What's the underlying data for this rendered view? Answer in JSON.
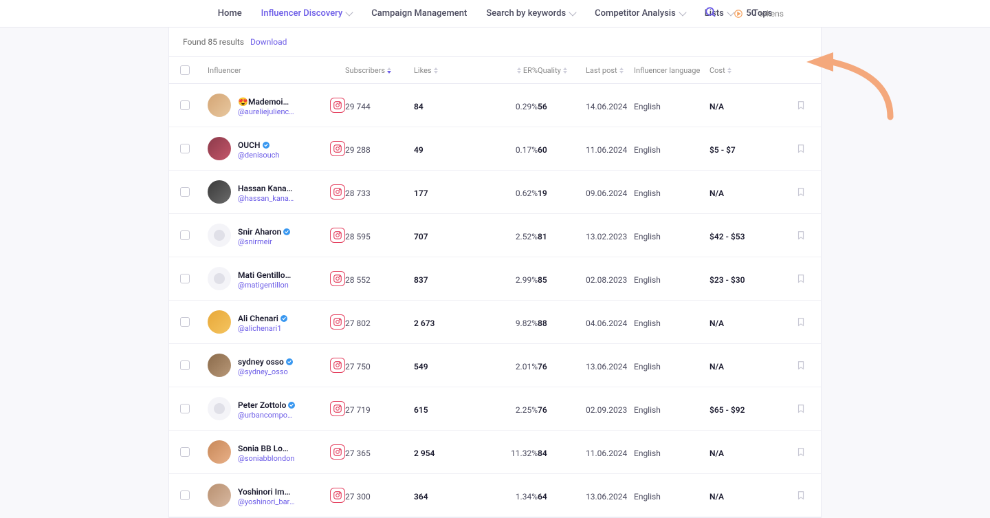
{
  "nav": {
    "items": [
      {
        "label": "Home",
        "active": false,
        "dropdown": false
      },
      {
        "label": "Influencer Discovery",
        "active": true,
        "dropdown": true
      },
      {
        "label": "Campaign Management",
        "active": false,
        "dropdown": false
      },
      {
        "label": "Search by keywords",
        "active": false,
        "dropdown": true
      },
      {
        "label": "Competitor Analysis",
        "active": false,
        "dropdown": true
      },
      {
        "label": "Lists",
        "active": false,
        "dropdown": true
      },
      {
        "label": "Tops",
        "active": false,
        "dropdown": false
      }
    ],
    "tokens_count": "50",
    "tokens_label": "tokens"
  },
  "results": {
    "text": "Found 85 results",
    "download_label": "Download"
  },
  "columns": {
    "influencer": "Influencer",
    "subscribers": "Subscribers",
    "likes": "Likes",
    "er": "ER%",
    "quality": "Quality",
    "lastpost": "Last post",
    "language": "Influencer language",
    "cost": "Cost"
  },
  "rows": [
    {
      "name": "😍Mademoise...",
      "handle": "@aureliejuliencollet",
      "verified": false,
      "avatar_bg": "linear-gradient(135deg,#d4a574,#e8c8a0)",
      "blank": false,
      "subscribers": "29 744",
      "likes": "84",
      "er": "0.29%",
      "quality": "56",
      "lastpost": "14.06.2024",
      "language": "English",
      "cost": "N/A"
    },
    {
      "name": "OUCH",
      "handle": "@denisouch",
      "verified": true,
      "avatar_bg": "linear-gradient(135deg,#8b3a4a,#c4566a)",
      "blank": false,
      "subscribers": "29 288",
      "likes": "49",
      "er": "0.17%",
      "quality": "60",
      "lastpost": "11.06.2024",
      "language": "English",
      "cost": "$5 - $7"
    },
    {
      "name": "Hassan Kanaa...",
      "handle": "@hassan_kanaan_a",
      "verified": false,
      "avatar_bg": "linear-gradient(135deg,#3a3a3a,#6a6a6a)",
      "blank": false,
      "subscribers": "28 733",
      "likes": "177",
      "er": "0.62%",
      "quality": "19",
      "lastpost": "09.06.2024",
      "language": "English",
      "cost": "N/A"
    },
    {
      "name": "Snir Aharon",
      "handle": "@snirmeir",
      "verified": true,
      "avatar_bg": "",
      "blank": true,
      "subscribers": "28 595",
      "likes": "707",
      "er": "2.52%",
      "quality": "81",
      "lastpost": "13.02.2023",
      "language": "English",
      "cost": "$42 - $53"
    },
    {
      "name": "Mati Gentillon...",
      "handle": "@matigentillon",
      "verified": false,
      "avatar_bg": "",
      "blank": true,
      "subscribers": "28 552",
      "likes": "837",
      "er": "2.99%",
      "quality": "85",
      "lastpost": "02.08.2023",
      "language": "English",
      "cost": "$23 - $30"
    },
    {
      "name": "Ali Chenari",
      "handle": "@alichenari1",
      "verified": true,
      "avatar_bg": "linear-gradient(135deg,#e8a838,#f4c460)",
      "blank": false,
      "subscribers": "27 802",
      "likes": "2 673",
      "er": "9.82%",
      "quality": "88",
      "lastpost": "04.06.2024",
      "language": "English",
      "cost": "N/A"
    },
    {
      "name": "sydney osso",
      "handle": "@sydney_osso",
      "verified": true,
      "avatar_bg": "linear-gradient(135deg,#8a6a4a,#b89878)",
      "blank": false,
      "subscribers": "27 750",
      "likes": "549",
      "er": "2.01%",
      "quality": "76",
      "lastpost": "13.06.2024",
      "language": "English",
      "cost": "N/A"
    },
    {
      "name": "Peter Zottolo",
      "handle": "@urbancompositio",
      "verified": true,
      "avatar_bg": "",
      "blank": true,
      "subscribers": "27 719",
      "likes": "615",
      "er": "2.25%",
      "quality": "76",
      "lastpost": "02.09.2023",
      "language": "English",
      "cost": "$65 - $92"
    },
    {
      "name": "Sonia BB Lon...",
      "handle": "@soniabblondon",
      "verified": false,
      "avatar_bg": "linear-gradient(135deg,#c88858,#e8b088)",
      "blank": false,
      "subscribers": "27 365",
      "likes": "2 954",
      "er": "11.32%",
      "quality": "84",
      "lastpost": "11.06.2024",
      "language": "English",
      "cost": "N/A"
    },
    {
      "name": "Yoshinori Ima...",
      "handle": "@yoshinori_barista",
      "verified": false,
      "avatar_bg": "linear-gradient(135deg,#b89070,#d8b8a0)",
      "blank": false,
      "subscribers": "27 300",
      "likes": "364",
      "er": "1.34%",
      "quality": "64",
      "lastpost": "13.06.2024",
      "language": "English",
      "cost": "N/A"
    }
  ],
  "colors": {
    "accent": "#6c5ce7",
    "arrow": "#f4a87c",
    "instagram": "#e4405f"
  }
}
